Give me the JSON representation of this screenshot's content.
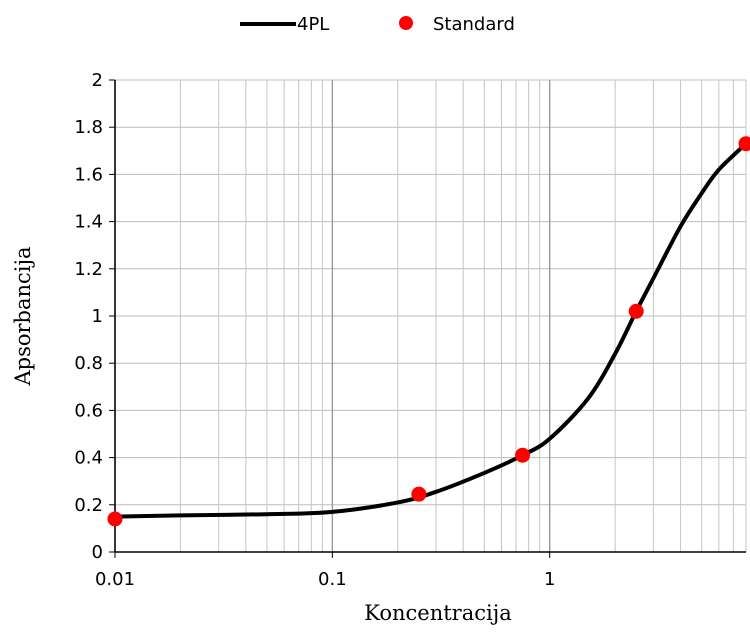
{
  "chart_data": {
    "type": "scatter",
    "x_scale": "log",
    "xlim": [
      0.01,
      8
    ],
    "ylim": [
      0,
      2
    ],
    "x_ticks": [
      0.01,
      0.1,
      1
    ],
    "x_tick_labels": [
      "0.01",
      "0.1",
      "1"
    ],
    "y_ticks": [
      0,
      0.2,
      0.4,
      0.6,
      0.8,
      1,
      1.2,
      1.4,
      1.6,
      1.8,
      2
    ],
    "y_tick_labels": [
      "0",
      "0.2",
      "0.4",
      "0.6",
      "0.8",
      "1",
      "1.2",
      "1.4",
      "1.6",
      "1.8",
      "2"
    ],
    "xlabel": "Koncentracija",
    "ylabel": "Apsorbancija",
    "grid": true,
    "legend_position": "top",
    "series": [
      {
        "name": "4PL",
        "kind": "line",
        "color": "#000000",
        "x": [
          0.01,
          0.02,
          0.05,
          0.1,
          0.2,
          0.3,
          0.5,
          0.75,
          1,
          1.5,
          2,
          2.5,
          3,
          4,
          5,
          6,
          8
        ],
        "y": [
          0.15,
          0.155,
          0.16,
          0.17,
          0.21,
          0.255,
          0.335,
          0.41,
          0.48,
          0.65,
          0.84,
          1.02,
          1.16,
          1.38,
          1.52,
          1.62,
          1.73
        ]
      },
      {
        "name": "Standard",
        "kind": "points",
        "color": "#ff0000",
        "x": [
          0.01,
          0.25,
          0.75,
          2.5,
          8
        ],
        "y": [
          0.14,
          0.245,
          0.41,
          1.02,
          1.73
        ]
      }
    ]
  }
}
